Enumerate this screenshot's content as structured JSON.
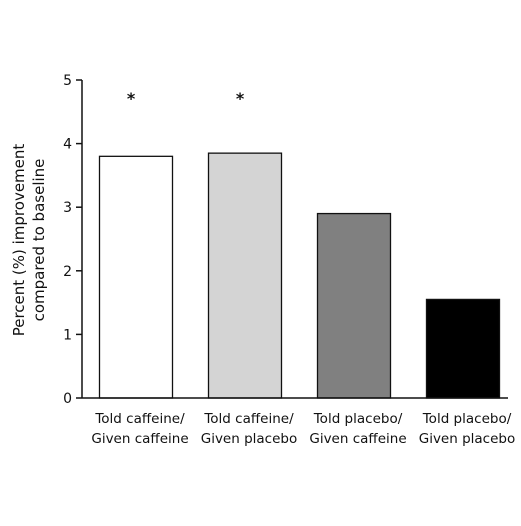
{
  "chart_data": {
    "type": "bar",
    "categories": [
      [
        "Told caffeine/",
        "Given caffeine"
      ],
      [
        "Told caffeine/",
        "Given placebo"
      ],
      [
        "Told placebo/",
        "Given caffeine"
      ],
      [
        "Told placebo/",
        "Given placebo"
      ]
    ],
    "values": [
      3.8,
      3.85,
      2.9,
      1.55
    ],
    "bar_colors": [
      "#ffffff",
      "#d4d4d4",
      "#808080",
      "#000000"
    ],
    "significance": [
      "*",
      "*",
      "",
      ""
    ],
    "ylabel_lines": [
      "Percent (%) improvement",
      "compared to baseline"
    ],
    "xlabel": "",
    "ylim": [
      0,
      5
    ],
    "yticks": [
      "0",
      "1",
      "2",
      "3",
      "4",
      "5"
    ],
    "grid": false
  }
}
